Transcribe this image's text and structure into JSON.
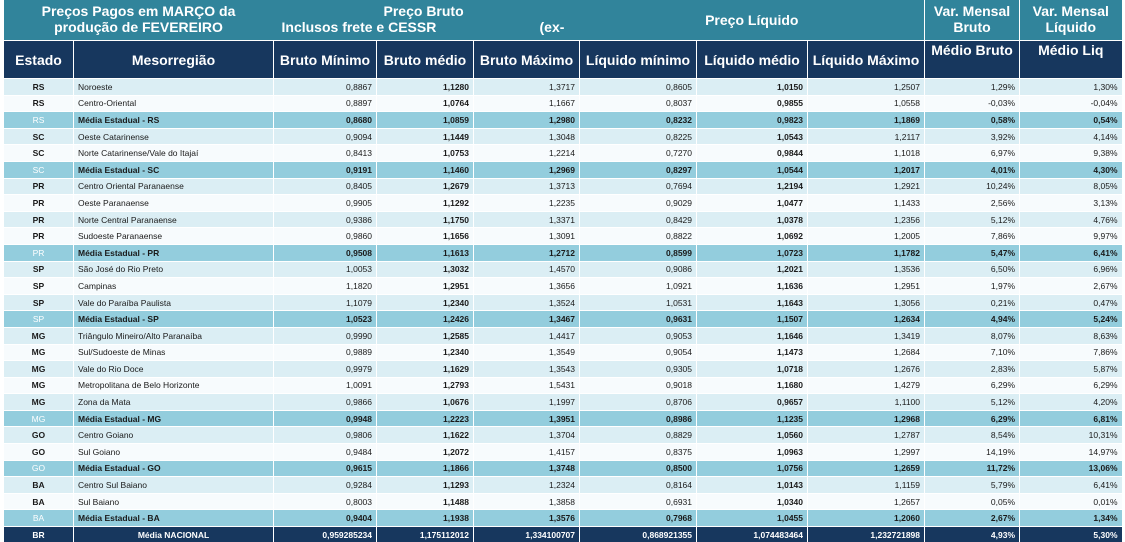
{
  "header": {
    "title_line1": "Preços Pagos em MARÇO da",
    "title_line2": "produção de FEVEREIRO",
    "bruto_line1": "Preço Bruto",
    "bruto_line2": "Inclusos frete e CESSR",
    "bruto_line3": "(ex-",
    "liquido_label": "Preço Líquido",
    "var_bruto_line1": "Var. Mensal",
    "var_bruto_line2": "Bruto",
    "var_liq_line1": "Var. Mensal",
    "var_liq_line2": "Líquido"
  },
  "columns": {
    "estado": "Estado",
    "meso": "Mesorregião",
    "bruto_min": "Bruto Mínimo",
    "bruto_med": "Bruto médio",
    "bruto_max": "Bruto Máximo",
    "liq_min": "Líquido mínimo",
    "liq_med": "Líquido médio",
    "liq_max": "Líquido Máximo",
    "var_bruto": "Médio Bruto",
    "var_liq": "Médio Liq"
  },
  "rows": [
    {
      "type": "odd",
      "uf": "RS",
      "meso": "Noroeste",
      "bmin": "0,8867",
      "bmed": "1,1280",
      "bmax": "1,3717",
      "lmin": "0,8605",
      "lmed": "1,0150",
      "lmax": "1,2507",
      "vb": "1,29%",
      "vl": "1,30%"
    },
    {
      "type": "even",
      "uf": "RS",
      "meso": "Centro-Oriental",
      "bmin": "0,8897",
      "bmed": "1,0764",
      "bmax": "1,1667",
      "lmin": "0,8037",
      "lmed": "0,9855",
      "lmax": "1,0558",
      "vb": "-0,03%",
      "vl": "-0,04%"
    },
    {
      "type": "avg",
      "uf": "RS",
      "meso": "Média Estadual - RS",
      "bmin": "0,8680",
      "bmed": "1,0859",
      "bmax": "1,2980",
      "lmin": "0,8232",
      "lmed": "0,9823",
      "lmax": "1,1869",
      "vb": "0,58%",
      "vl": "0,54%"
    },
    {
      "type": "odd",
      "uf": "SC",
      "meso": "Oeste Catarinense",
      "bmin": "0,9094",
      "bmed": "1,1449",
      "bmax": "1,3048",
      "lmin": "0,8225",
      "lmed": "1,0543",
      "lmax": "1,2117",
      "vb": "3,92%",
      "vl": "4,14%"
    },
    {
      "type": "even",
      "uf": "SC",
      "meso": "Norte Catarinense/Vale do Itajaí",
      "bmin": "0,8413",
      "bmed": "1,0753",
      "bmax": "1,2214",
      "lmin": "0,7270",
      "lmed": "0,9844",
      "lmax": "1,1018",
      "vb": "6,97%",
      "vl": "9,38%"
    },
    {
      "type": "avg",
      "uf": "SC",
      "meso": "Média Estadual - SC",
      "bmin": "0,9191",
      "bmed": "1,1460",
      "bmax": "1,2969",
      "lmin": "0,8297",
      "lmed": "1,0544",
      "lmax": "1,2017",
      "vb": "4,01%",
      "vl": "4,30%"
    },
    {
      "type": "odd",
      "uf": "PR",
      "meso": "Centro Oriental Paranaense",
      "bmin": "0,8405",
      "bmed": "1,2679",
      "bmax": "1,3713",
      "lmin": "0,7694",
      "lmed": "1,2194",
      "lmax": "1,2921",
      "vb": "10,24%",
      "vl": "8,05%"
    },
    {
      "type": "even",
      "uf": "PR",
      "meso": "Oeste Paranaense",
      "bmin": "0,9905",
      "bmed": "1,1292",
      "bmax": "1,2235",
      "lmin": "0,9029",
      "lmed": "1,0477",
      "lmax": "1,1433",
      "vb": "2,56%",
      "vl": "3,13%"
    },
    {
      "type": "odd",
      "uf": "PR",
      "meso": "Norte Central Paranaense",
      "bmin": "0,9386",
      "bmed": "1,1750",
      "bmax": "1,3371",
      "lmin": "0,8429",
      "lmed": "1,0378",
      "lmax": "1,2356",
      "vb": "5,12%",
      "vl": "4,76%"
    },
    {
      "type": "even",
      "uf": "PR",
      "meso": "Sudoeste Paranaense",
      "bmin": "0,9860",
      "bmed": "1,1656",
      "bmax": "1,3091",
      "lmin": "0,8822",
      "lmed": "1,0692",
      "lmax": "1,2005",
      "vb": "7,86%",
      "vl": "9,97%"
    },
    {
      "type": "avg",
      "uf": "PR",
      "meso": "Média Estadual - PR",
      "bmin": "0,9508",
      "bmed": "1,1613",
      "bmax": "1,2712",
      "lmin": "0,8599",
      "lmed": "1,0723",
      "lmax": "1,1782",
      "vb": "5,47%",
      "vl": "6,41%"
    },
    {
      "type": "odd",
      "uf": "SP",
      "meso": "São José do Rio Preto",
      "bmin": "1,0053",
      "bmed": "1,3032",
      "bmax": "1,4570",
      "lmin": "0,9086",
      "lmed": "1,2021",
      "lmax": "1,3536",
      "vb": "6,50%",
      "vl": "6,96%"
    },
    {
      "type": "even",
      "uf": "SP",
      "meso": "Campinas",
      "bmin": "1,1820",
      "bmed": "1,2951",
      "bmax": "1,3656",
      "lmin": "1,0921",
      "lmed": "1,1636",
      "lmax": "1,2951",
      "vb": "1,97%",
      "vl": "2,67%"
    },
    {
      "type": "odd",
      "uf": "SP",
      "meso": "Vale do Paraíba Paulista",
      "bmin": "1,1079",
      "bmed": "1,2340",
      "bmax": "1,3524",
      "lmin": "1,0531",
      "lmed": "1,1643",
      "lmax": "1,3056",
      "vb": "0,21%",
      "vl": "0,47%"
    },
    {
      "type": "avg",
      "uf": "SP",
      "meso": "Média Estadual - SP",
      "bmin": "1,0523",
      "bmed": "1,2426",
      "bmax": "1,3467",
      "lmin": "0,9631",
      "lmed": "1,1507",
      "lmax": "1,2634",
      "vb": "4,94%",
      "vl": "5,24%"
    },
    {
      "type": "odd",
      "uf": "MG",
      "meso": "Triângulo Mineiro/Alto Paranaíba",
      "bmin": "0,9990",
      "bmed": "1,2585",
      "bmax": "1,4417",
      "lmin": "0,9053",
      "lmed": "1,1646",
      "lmax": "1,3419",
      "vb": "8,07%",
      "vl": "8,63%"
    },
    {
      "type": "even",
      "uf": "MG",
      "meso": "Sul/Sudoeste de Minas",
      "bmin": "0,9889",
      "bmed": "1,2340",
      "bmax": "1,3549",
      "lmin": "0,9054",
      "lmed": "1,1473",
      "lmax": "1,2684",
      "vb": "7,10%",
      "vl": "7,86%"
    },
    {
      "type": "odd",
      "uf": "MG",
      "meso": "Vale do Rio Doce",
      "bmin": "0,9979",
      "bmed": "1,1629",
      "bmax": "1,3543",
      "lmin": "0,9305",
      "lmed": "1,0718",
      "lmax": "1,2676",
      "vb": "2,83%",
      "vl": "5,87%"
    },
    {
      "type": "even",
      "uf": "MG",
      "meso": "Metropolitana de Belo Horizonte",
      "bmin": "1,0091",
      "bmed": "1,2793",
      "bmax": "1,5431",
      "lmin": "0,9018",
      "lmed": "1,1680",
      "lmax": "1,4279",
      "vb": "6,29%",
      "vl": "6,29%"
    },
    {
      "type": "odd",
      "uf": "MG",
      "meso": "Zona da Mata",
      "bmin": "0,9866",
      "bmed": "1,0676",
      "bmax": "1,1997",
      "lmin": "0,8706",
      "lmed": "0,9657",
      "lmax": "1,1100",
      "vb": "5,12%",
      "vl": "4,20%"
    },
    {
      "type": "avg",
      "uf": "MG",
      "meso": "Média Estadual - MG",
      "bmin": "0,9948",
      "bmed": "1,2223",
      "bmax": "1,3951",
      "lmin": "0,8986",
      "lmed": "1,1235",
      "lmax": "1,2968",
      "vb": "6,29%",
      "vl": "6,81%"
    },
    {
      "type": "odd",
      "uf": "GO",
      "meso": "Centro Goiano",
      "bmin": "0,9806",
      "bmed": "1,1622",
      "bmax": "1,3704",
      "lmin": "0,8829",
      "lmed": "1,0560",
      "lmax": "1,2787",
      "vb": "8,54%",
      "vl": "10,31%"
    },
    {
      "type": "even",
      "uf": "GO",
      "meso": "Sul Goiano",
      "bmin": "0,9484",
      "bmed": "1,2072",
      "bmax": "1,4157",
      "lmin": "0,8375",
      "lmed": "1,0963",
      "lmax": "1,2997",
      "vb": "14,19%",
      "vl": "14,97%"
    },
    {
      "type": "avg",
      "uf": "GO",
      "meso": "Média Estadual - GO",
      "bmin": "0,9615",
      "bmed": "1,1866",
      "bmax": "1,3748",
      "lmin": "0,8500",
      "lmed": "1,0756",
      "lmax": "1,2659",
      "vb": "11,72%",
      "vl": "13,06%"
    },
    {
      "type": "odd",
      "uf": "BA",
      "meso": "Centro Sul Baiano",
      "bmin": "0,9284",
      "bmed": "1,1293",
      "bmax": "1,2324",
      "lmin": "0,8164",
      "lmed": "1,0143",
      "lmax": "1,1159",
      "vb": "5,79%",
      "vl": "6,41%"
    },
    {
      "type": "even",
      "uf": "BA",
      "meso": "Sul Baiano",
      "bmin": "0,8003",
      "bmed": "1,1488",
      "bmax": "1,3858",
      "lmin": "0,6931",
      "lmed": "1,0340",
      "lmax": "1,2657",
      "vb": "0,05%",
      "vl": "0,01%"
    },
    {
      "type": "avg",
      "uf": "BA",
      "meso": "Média Estadual - BA",
      "bmin": "0,9404",
      "bmed": "1,1938",
      "bmax": "1,3576",
      "lmin": "0,7968",
      "lmed": "1,0455",
      "lmax": "1,2060",
      "vb": "2,67%",
      "vl": "1,34%"
    }
  ],
  "national": {
    "uf": "BR",
    "meso": "Média NACIONAL",
    "bmin": "0,959285234",
    "bmed": "1,175112012",
    "bmax": "1,334100707",
    "lmin": "0,868921355",
    "lmed": "1,074483464",
    "lmax": "1,232721898",
    "vb": "4,93%",
    "vl": "5,30%"
  }
}
